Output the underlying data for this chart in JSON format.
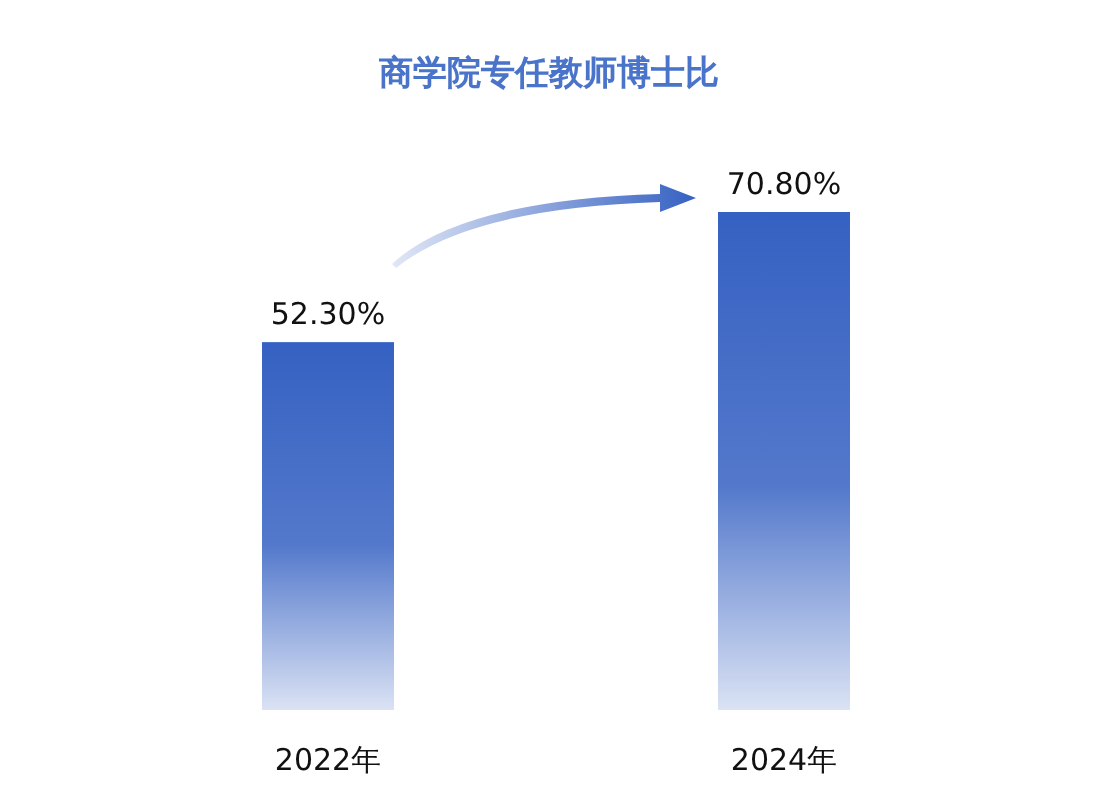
{
  "chart_data": {
    "type": "bar",
    "title": "商学院专任教师博士比",
    "categories": [
      "2022年",
      "2024年"
    ],
    "series": [
      {
        "color": "#3561c2",
        "values": [
          52.3,
          70.8
        ],
        "value_labels": [
          "52.30%",
          "70.80%"
        ]
      }
    ]
  }
}
